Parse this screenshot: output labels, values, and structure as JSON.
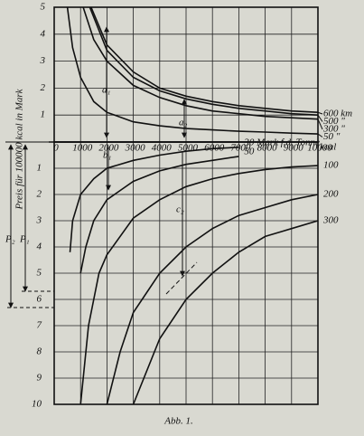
{
  "chart_data": [
    {
      "type": "line",
      "y_label": "Preis für 100000 kcal in Mark",
      "x_label": "kcal",
      "xlim": [
        0,
        10000
      ],
      "xticks": [
        0,
        1000,
        2000,
        3000,
        4000,
        5000,
        6000,
        7000,
        8000,
        9000,
        10000
      ],
      "ylim": [
        0,
        5
      ],
      "yticks": [
        1,
        2,
        3,
        4,
        5
      ],
      "grid": true,
      "color": "#111111",
      "series": [
        {
          "name": "600 km",
          "x": [
            1400,
            2000,
            3000,
            4000,
            5000,
            6000,
            7000,
            8000,
            9000,
            10000
          ],
          "values": [
            5,
            3.6,
            2.6,
            2.0,
            1.7,
            1.5,
            1.35,
            1.25,
            1.15,
            1.1
          ]
        },
        {
          "name": "500 \"",
          "x": [
            1350,
            2000,
            3000,
            4000,
            5000,
            6000,
            7000,
            8000,
            9000,
            10000
          ],
          "values": [
            5,
            3.4,
            2.4,
            1.9,
            1.6,
            1.4,
            1.25,
            1.15,
            1.05,
            1.0
          ]
        },
        {
          "name": "300 \"",
          "x": [
            1100,
            1500,
            2000,
            3000,
            4000,
            5000,
            6000,
            7000,
            8000,
            9000,
            10000
          ],
          "values": [
            5,
            3.8,
            3.0,
            2.1,
            1.65,
            1.35,
            1.15,
            1.05,
            0.95,
            0.9,
            0.85
          ]
        },
        {
          "name": "50 \"",
          "x": [
            500,
            700,
            1000,
            1500,
            2000,
            3000,
            4000,
            5000,
            6000,
            7000,
            8000,
            9000,
            10000
          ],
          "values": [
            5,
            3.5,
            2.4,
            1.5,
            1.1,
            0.75,
            0.6,
            0.5,
            0.45,
            0.4,
            0.37,
            0.33,
            0.3
          ]
        }
      ],
      "annotations": [
        "a₁",
        "a₂"
      ]
    },
    {
      "type": "line",
      "xlim": [
        0,
        10000
      ],
      "ylim": [
        0,
        10
      ],
      "yticks": [
        1,
        2,
        3,
        4,
        5,
        6,
        7,
        8,
        9,
        10
      ],
      "grid": true,
      "color": "#111111",
      "series": [
        {
          "name": "30 Mark f.d. Tonne",
          "x": [
            600,
            700,
            1000,
            1500,
            2000,
            3000,
            4000,
            5000,
            6000,
            7000
          ],
          "values": [
            4.2,
            3,
            2,
            1.4,
            1.0,
            0.7,
            0.5,
            0.35,
            0.25,
            0.2
          ]
        },
        {
          "name": "50",
          "x": [
            1000,
            1200,
            1500,
            2000,
            3000,
            4000,
            5000,
            6000,
            7000
          ],
          "values": [
            5.0,
            4,
            3.0,
            2.2,
            1.5,
            1.1,
            0.85,
            0.7,
            0.55
          ]
        },
        {
          "name": "100",
          "x": [
            1000,
            1300,
            1700,
            2000,
            3000,
            4000,
            5000,
            6000,
            7000,
            8000,
            9000,
            10000
          ],
          "values": [
            10,
            7,
            5,
            4.3,
            2.9,
            2.2,
            1.7,
            1.4,
            1.2,
            1.05,
            0.95,
            0.9
          ]
        },
        {
          "name": "200",
          "x": [
            2000,
            2500,
            3000,
            4000,
            5000,
            6000,
            7000,
            8000,
            9000,
            10000
          ],
          "values": [
            10,
            8,
            6.5,
            5,
            4,
            3.3,
            2.8,
            2.5,
            2.2,
            2.0
          ]
        },
        {
          "name": "300",
          "x": [
            3000,
            4000,
            5000,
            6000,
            7000,
            8000,
            9000,
            10000
          ],
          "values": [
            10,
            7.5,
            6,
            5,
            4.2,
            3.6,
            3.3,
            3.0
          ]
        }
      ],
      "annotations": [
        "b₁",
        "c₂",
        "P₂",
        "P₁"
      ]
    }
  ],
  "caption": "Abb. 1."
}
